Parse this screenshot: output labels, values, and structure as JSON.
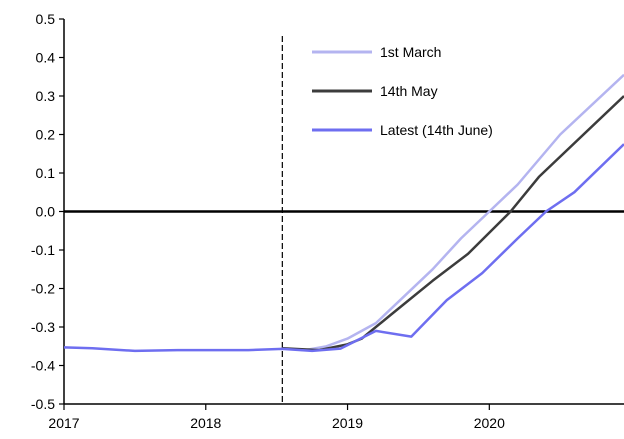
{
  "chart_data": {
    "type": "line",
    "title": "",
    "xlabel": "",
    "ylabel": "",
    "x_ticks": [
      "2017",
      "2018",
      "2019",
      "2020"
    ],
    "y_ticks": [
      "0.5",
      "0.4",
      "0.3",
      "0.2",
      "0.1",
      "0.0",
      "-0.1",
      "-0.2",
      "-0.3",
      "-0.4",
      "-0.5"
    ],
    "xlim": [
      2017,
      2020.95
    ],
    "ylim": [
      -0.5,
      0.5
    ],
    "reference_lines": {
      "horizontal_zero": 0.0,
      "vertical_dashed_x": 2018.54
    },
    "legend_position": "top-center",
    "series": [
      {
        "name": "1st March",
        "color": "#b4b4f0",
        "x": [
          2018.54,
          2018.7,
          2018.85,
          2019.0,
          2019.2,
          2019.4,
          2019.6,
          2019.8,
          2020.0,
          2020.2,
          2020.5,
          2020.95
        ],
        "y": [
          -0.355,
          -0.36,
          -0.35,
          -0.33,
          -0.29,
          -0.22,
          -0.15,
          -0.07,
          0.0,
          0.07,
          0.2,
          0.355
        ]
      },
      {
        "name": "14th May",
        "color": "#3c3c3c",
        "x": [
          2018.54,
          2018.8,
          2019.0,
          2019.1,
          2019.3,
          2019.6,
          2019.85,
          2020.15,
          2020.35,
          2020.95
        ],
        "y": [
          -0.355,
          -0.36,
          -0.345,
          -0.33,
          -0.27,
          -0.18,
          -0.11,
          0.0,
          0.09,
          0.3
        ]
      },
      {
        "name": "Latest (14th June)",
        "color": "#6e6ef0",
        "x": [
          2017.0,
          2017.2,
          2017.5,
          2017.8,
          2018.0,
          2018.3,
          2018.54,
          2018.75,
          2018.95,
          2019.2,
          2019.45,
          2019.7,
          2019.95,
          2020.2,
          2020.4,
          2020.6,
          2020.95
        ],
        "y": [
          -0.353,
          -0.355,
          -0.362,
          -0.36,
          -0.36,
          -0.36,
          -0.357,
          -0.362,
          -0.356,
          -0.31,
          -0.325,
          -0.23,
          -0.16,
          -0.07,
          0.0,
          0.05,
          0.175
        ]
      }
    ]
  }
}
